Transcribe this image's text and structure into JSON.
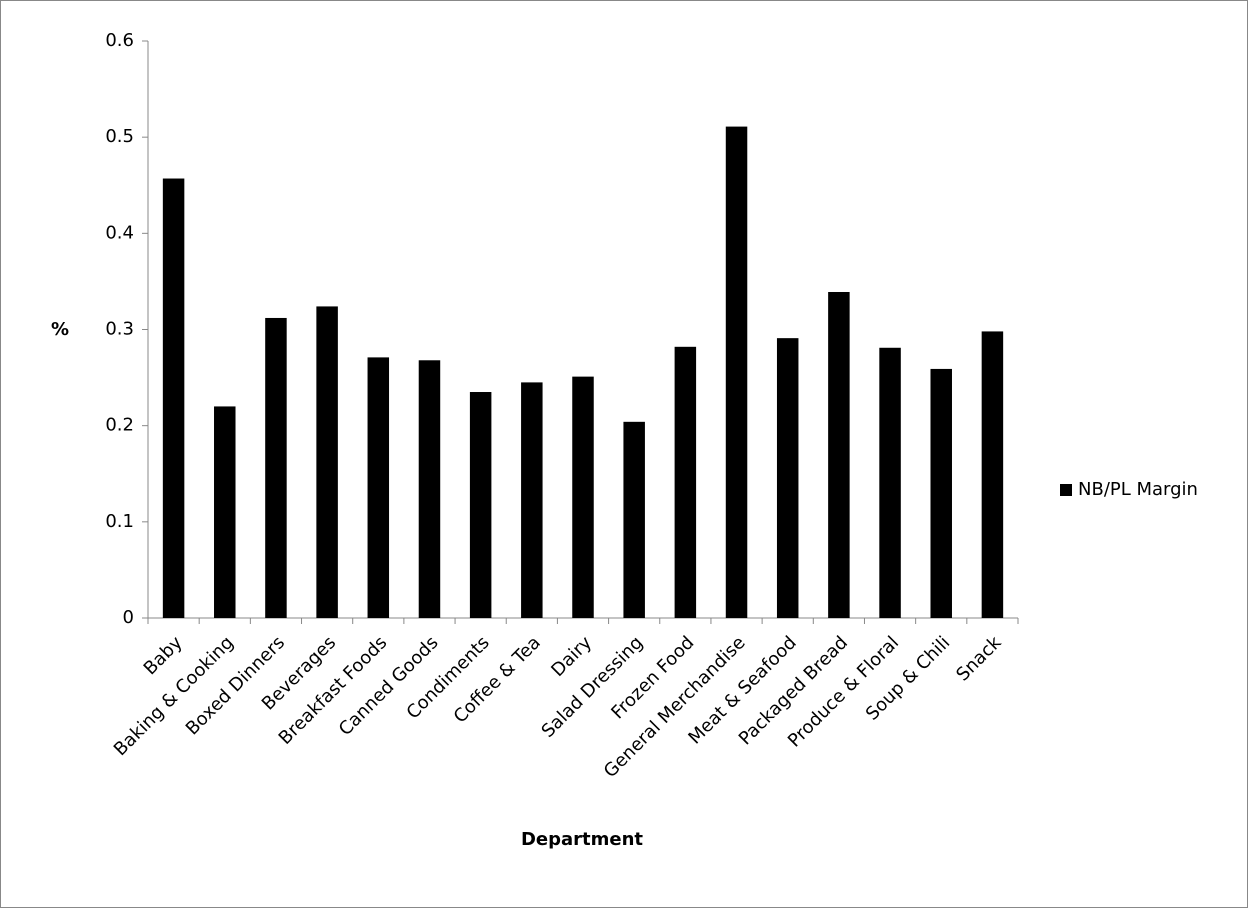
{
  "chart_data": {
    "type": "bar",
    "x_label": "Department",
    "y_label": "%",
    "categories": [
      "Baby",
      "Baking & Cooking",
      "Boxed Dinners",
      "Beverages",
      "Breakfast Foods",
      "Canned Goods",
      "Condiments",
      "Coffee & Tea",
      "Dairy",
      "Salad Dressing",
      "Frozen Food",
      "General Merchandise",
      "Meat & Seafood",
      "Packaged Bread",
      "Produce & Floral",
      "Soup & Chili",
      "Snack"
    ],
    "series": [
      {
        "name": "NB/PL Margin",
        "color": "#000000",
        "values": [
          0.457,
          0.22,
          0.312,
          0.324,
          0.271,
          0.268,
          0.235,
          0.245,
          0.251,
          0.204,
          0.282,
          0.511,
          0.291,
          0.339,
          0.281,
          0.259,
          0.298
        ]
      }
    ],
    "ylim": [
      0,
      0.6
    ],
    "yticks": [
      0,
      0.1,
      0.2,
      0.3,
      0.4,
      0.5,
      0.6
    ],
    "grid": false,
    "legend": "right"
  }
}
